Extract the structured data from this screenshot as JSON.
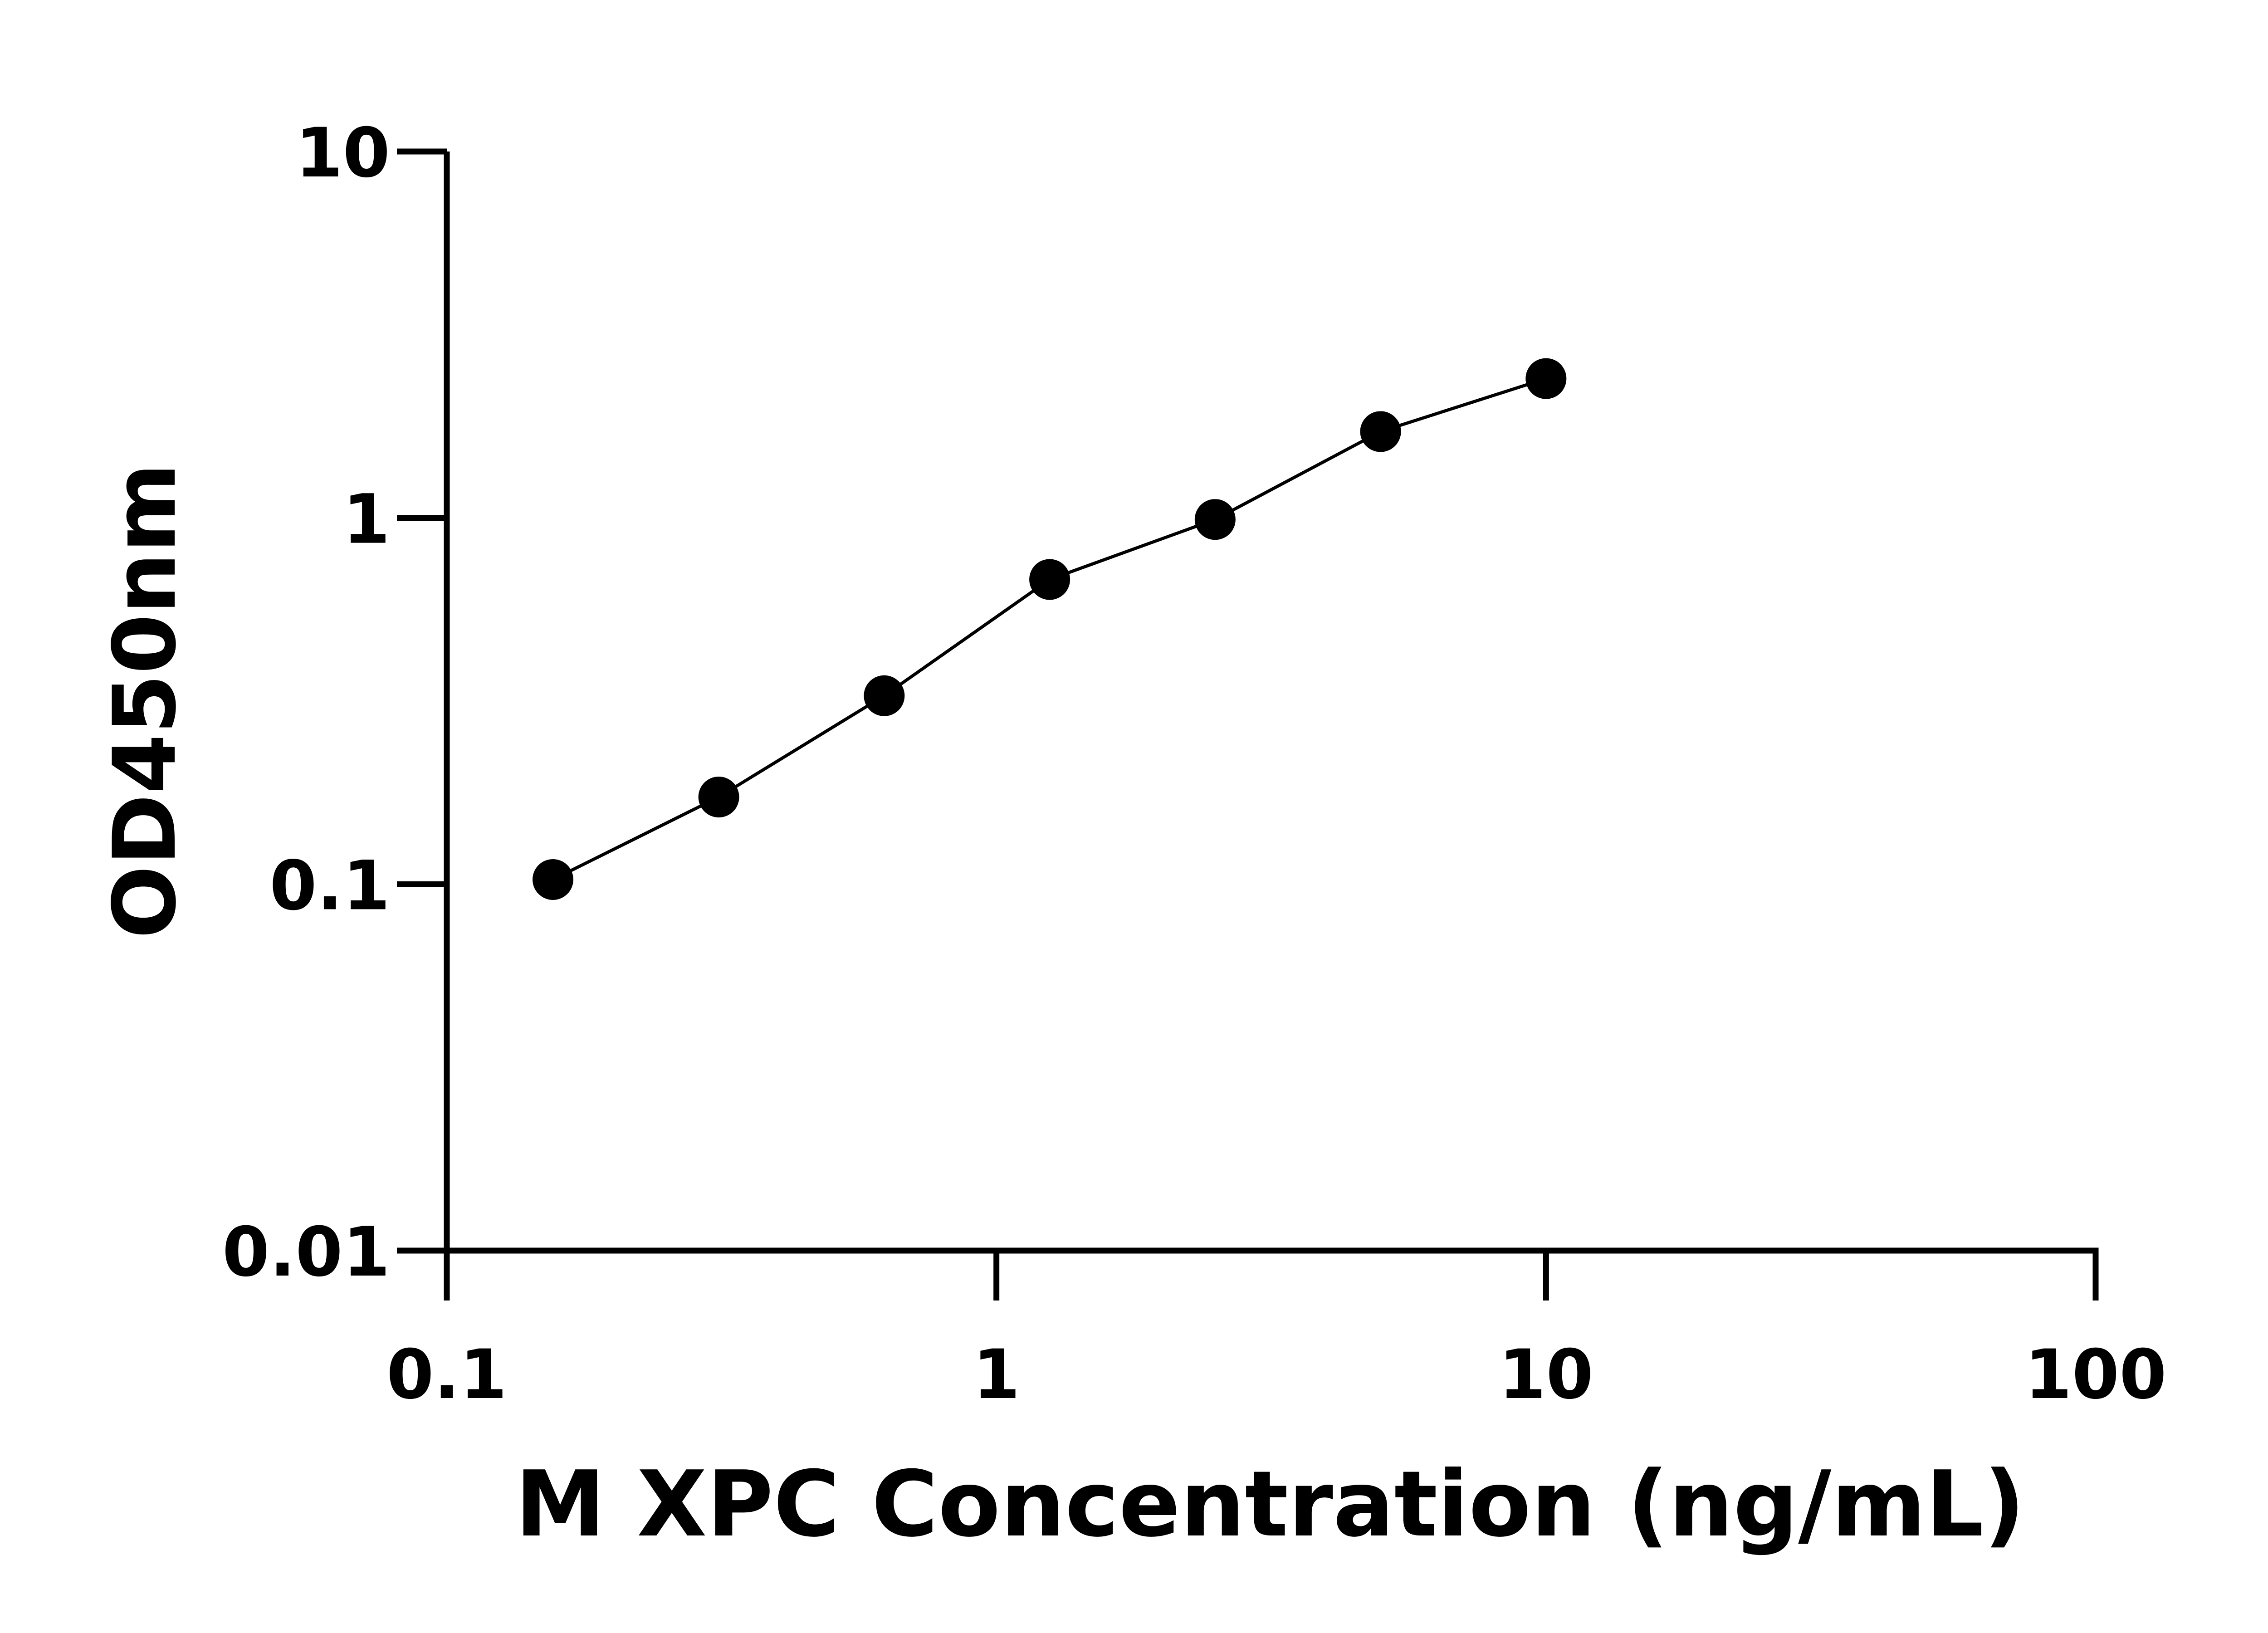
{
  "chart_data": {
    "type": "line",
    "title": "",
    "xlabel": "M XPC Concentration (ng/mL)",
    "ylabel": "OD450nm",
    "xscale": "log",
    "yscale": "log",
    "xlim": [
      0.1,
      100
    ],
    "ylim": [
      0.01,
      10
    ],
    "xticks": [
      "0.1",
      "1",
      "10",
      "100"
    ],
    "yticks": [
      "0.01",
      "0.1",
      "1",
      "10"
    ],
    "grid": false,
    "legend": "none",
    "marker": "filled-circle",
    "color": "#000000",
    "series": [
      {
        "x": [
          0.156,
          0.3125,
          0.625,
          1.25,
          2.5,
          5,
          10
        ],
        "y": [
          0.103,
          0.173,
          0.327,
          0.679,
          0.99,
          1.72,
          2.4
        ]
      }
    ]
  }
}
